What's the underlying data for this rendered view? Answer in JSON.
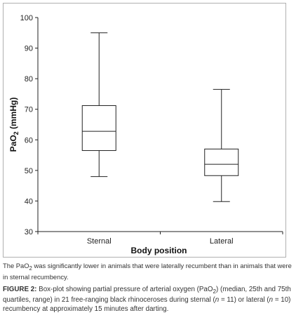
{
  "chart_data": {
    "type": "boxplot",
    "title": "",
    "xlabel": "Body position",
    "ylabel": "PaO",
    "ylabel_subscript": "2",
    "ylabel_unit": "(mmHg)",
    "ylim": [
      30,
      100
    ],
    "yticks": [
      30,
      40,
      50,
      60,
      70,
      80,
      90,
      100
    ],
    "grid": false,
    "categories": [
      "Sternal",
      "Lateral"
    ],
    "boxes": [
      {
        "category": "Sternal",
        "min": 48,
        "q1": 56.5,
        "median": 62.8,
        "q3": 71.2,
        "max": 95
      },
      {
        "category": "Lateral",
        "min": 39.8,
        "q1": 48.3,
        "median": 52,
        "q3": 57,
        "max": 76.5
      }
    ]
  },
  "caption": {
    "note_start": "The PaO",
    "note_sub": "2",
    "note_end": " was significantly lower in animals that were laterally recumbent than in animals that were in sternal recumbency.",
    "figure_label": "FIGURE 2:",
    "text_1": " Box-plot showing partial pressure of arterial oxygen (PaO",
    "sub": "2",
    "text_2": ") (median, 25th and 75th quartiles, range) in 21 free-ranging black rhinoceroses during sternal (",
    "n_symbol_1": "n",
    "text_3": " = 11) or lateral (",
    "n_symbol_2": "n",
    "text_4": " = 10) recumbency at approximately 15 minutes after darting."
  }
}
